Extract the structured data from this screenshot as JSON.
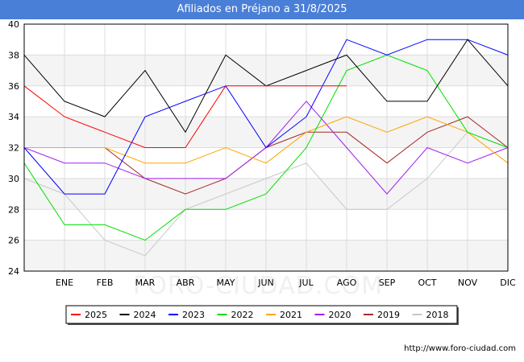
{
  "header": {
    "title": "Afiliados en Préjano a 31/8/2025"
  },
  "watermark": "FORO-CIUDAD.COM",
  "footer": {
    "url": "http://www.foro-ciudad.com"
  },
  "chart_data": {
    "type": "line",
    "title": "Afiliados en Préjano a 31/8/2025",
    "categories": [
      "",
      "ENE",
      "FEB",
      "MAR",
      "ABR",
      "MAY",
      "JUN",
      "JUL",
      "AGO",
      "SEP",
      "OCT",
      "NOV",
      "DIC"
    ],
    "ylim": [
      24,
      40
    ],
    "yticks": [
      24,
      26,
      28,
      30,
      32,
      34,
      36,
      38,
      40
    ],
    "grid": true,
    "legend_position": "bottom",
    "series": [
      {
        "name": "2018",
        "color": "#c8c8c8",
        "values": [
          30,
          29,
          26,
          25,
          28,
          29,
          30,
          31,
          28,
          28,
          30,
          33,
          32
        ]
      },
      {
        "name": "2019",
        "color": "#a52a2a",
        "values": [
          32,
          32,
          32,
          30,
          29,
          30,
          32,
          33,
          33,
          31,
          33,
          34,
          32
        ]
      },
      {
        "name": "2020",
        "color": "#a020f0",
        "values": [
          32,
          31,
          31,
          30,
          30,
          30,
          32,
          35,
          32,
          29,
          32,
          31,
          32
        ]
      },
      {
        "name": "2021",
        "color": "#ffa500",
        "values": [
          32,
          32,
          32,
          31,
          31,
          32,
          31,
          33,
          34,
          33,
          34,
          33,
          31
        ]
      },
      {
        "name": "2022",
        "color": "#00e000",
        "values": [
          31,
          27,
          27,
          26,
          28,
          28,
          29,
          32,
          37,
          38,
          37,
          33,
          32
        ]
      },
      {
        "name": "2023",
        "color": "#0000ff",
        "values": [
          32,
          29,
          29,
          34,
          35,
          36,
          32,
          34,
          39,
          38,
          39,
          39,
          38
        ]
      },
      {
        "name": "2024",
        "color": "#000000",
        "values": [
          38,
          35,
          34,
          37,
          33,
          38,
          36,
          37,
          38,
          35,
          35,
          39,
          36
        ]
      },
      {
        "name": "2025",
        "color": "#ff0000",
        "values": [
          36,
          34,
          33,
          32,
          32,
          36,
          36,
          36,
          36,
          null,
          null,
          null,
          null
        ]
      }
    ],
    "legend_order": [
      "2025",
      "2024",
      "2023",
      "2022",
      "2021",
      "2020",
      "2019",
      "2018"
    ]
  }
}
